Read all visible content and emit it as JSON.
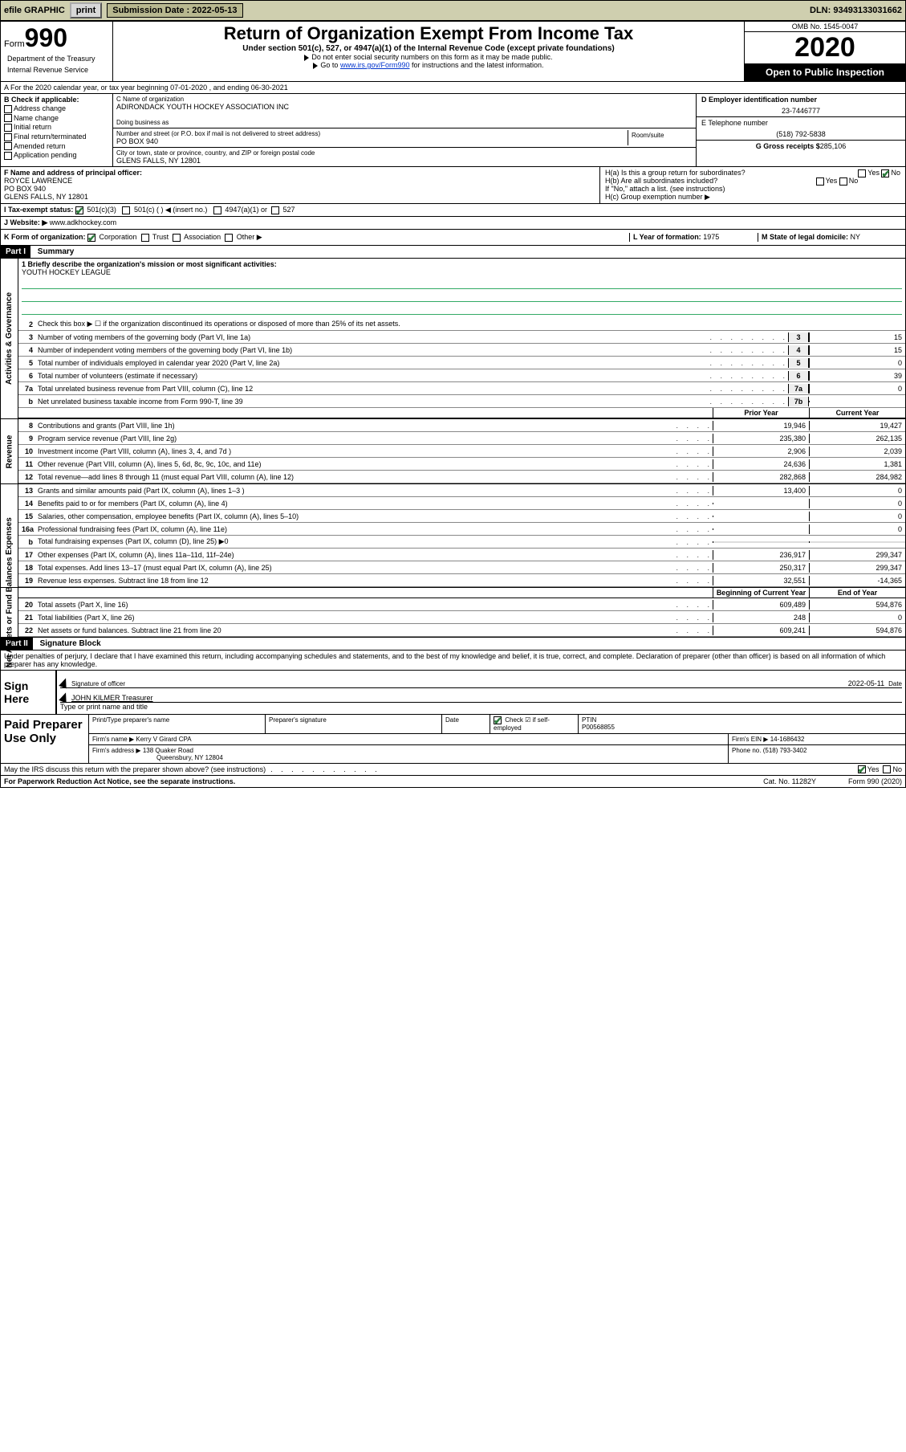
{
  "topbar": {
    "efile_label": "efile GRAPHIC",
    "print_btn": "print",
    "submission_label": "Submission Date : 2022-05-13",
    "dln_label": "DLN: 93493133031662"
  },
  "hdr": {
    "form_label": "Form",
    "form_number": "990",
    "dept": "Department of the Treasury",
    "irs": "Internal Revenue Service",
    "title": "Return of Organization Exempt From Income Tax",
    "subtitle": "Under section 501(c), 527, or 4947(a)(1) of the Internal Revenue Code (except private foundations)",
    "instr1": "Do not enter social security numbers on this form as it may be made public.",
    "instr2_pre": "Go to ",
    "instr2_link": "www.irs.gov/Form990",
    "instr2_post": " for instructions and the latest information.",
    "omb": "OMB No. 1545-0047",
    "year": "2020",
    "public": "Open to Public Inspection"
  },
  "rowA": "A For the 2020 calendar year, or tax year beginning 07-01-2020     , and ending 06-30-2021",
  "colB": {
    "label": "B Check if applicable:",
    "items": [
      "Address change",
      "Name change",
      "Initial return",
      "Final return/terminated",
      "Amended return",
      "Application pending"
    ]
  },
  "colC": {
    "name_hint": "C Name of organization",
    "name": "ADIRONDACK YOUTH HOCKEY ASSOCIATION INC",
    "dba_hint": "Doing business as",
    "addr_hint": "Number and street (or P.O. box if mail is not delivered to street address)",
    "room_hint": "Room/suite",
    "addr": "PO BOX 940",
    "city_hint": "City or town, state or province, country, and ZIP or foreign postal code",
    "city": "GLENS FALLS, NY  12801"
  },
  "colD": {
    "ein_hint": "D Employer identification number",
    "ein": "23-7446777",
    "tel_hint": "E Telephone number",
    "tel": "(518) 792-5838",
    "gross_hint": "G Gross receipts $",
    "gross": "285,106"
  },
  "rowF": {
    "f_hint": "F Name and address of principal officer:",
    "f_name": "ROYCE LAWRENCE",
    "f_addr1": "PO BOX 940",
    "f_addr2": "GLENS FALLS, NY  12801",
    "ha_label": "H(a)  Is this a group return for subordinates?",
    "hb_label": "H(b)  Are all subordinates included?",
    "h_instr": "If \"No,\" attach a list. (see instructions)",
    "hc_label": "H(c)  Group exemption number ▶",
    "yes": "Yes",
    "no": "No"
  },
  "rowI": {
    "label": "I    Tax-exempt status:",
    "opt1": "501(c)(3)",
    "opt2": "501(c) (  ) ◀ (insert no.)",
    "opt3": "4947(a)(1) or",
    "opt4": "527"
  },
  "rowJ": {
    "label": "J   Website: ▶",
    "value": "www.adkhockey.com"
  },
  "rowK": {
    "label": "K Form of organization:",
    "opts": [
      "Corporation",
      "Trust",
      "Association",
      "Other ▶"
    ],
    "l_label": "L Year of formation:",
    "l_val": "1975",
    "m_label": "M State of legal domicile:",
    "m_val": "NY"
  },
  "part1": {
    "header": "Part I",
    "title": "Summary"
  },
  "gov": {
    "vlabel": "Activities & Governance",
    "line1_label": "1  Briefly describe the organization's mission or most significant activities:",
    "line1_val": "YOUTH HOCKEY LEAGUE",
    "line2": "Check this box ▶ ☐  if the organization discontinued its operations or disposed of more than 25% of its net assets.",
    "rows": [
      {
        "n": "3",
        "desc": "Number of voting members of the governing body (Part VI, line 1a)",
        "box": "3",
        "val": "15"
      },
      {
        "n": "4",
        "desc": "Number of independent voting members of the governing body (Part VI, line 1b)",
        "box": "4",
        "val": "15"
      },
      {
        "n": "5",
        "desc": "Total number of individuals employed in calendar year 2020 (Part V, line 2a)",
        "box": "5",
        "val": "0"
      },
      {
        "n": "6",
        "desc": "Total number of volunteers (estimate if necessary)",
        "box": "6",
        "val": "39"
      },
      {
        "n": "7a",
        "desc": "Total unrelated business revenue from Part VIII, column (C), line 12",
        "box": "7a",
        "val": "0"
      },
      {
        "n": "b",
        "desc": "Net unrelated business taxable income from Form 990-T, line 39",
        "box": "7b",
        "val": ""
      }
    ]
  },
  "rev": {
    "vlabel": "Revenue",
    "hprior": "Prior Year",
    "hcurr": "Current Year",
    "rows": [
      {
        "n": "8",
        "desc": "Contributions and grants (Part VIII, line 1h)",
        "prior": "19,946",
        "curr": "19,427"
      },
      {
        "n": "9",
        "desc": "Program service revenue (Part VIII, line 2g)",
        "prior": "235,380",
        "curr": "262,135"
      },
      {
        "n": "10",
        "desc": "Investment income (Part VIII, column (A), lines 3, 4, and 7d )",
        "prior": "2,906",
        "curr": "2,039"
      },
      {
        "n": "11",
        "desc": "Other revenue (Part VIII, column (A), lines 5, 6d, 8c, 9c, 10c, and 11e)",
        "prior": "24,636",
        "curr": "1,381"
      },
      {
        "n": "12",
        "desc": "Total revenue—add lines 8 through 11 (must equal Part VIII, column (A), line 12)",
        "prior": "282,868",
        "curr": "284,982"
      }
    ]
  },
  "exp": {
    "vlabel": "Expenses",
    "rows": [
      {
        "n": "13",
        "desc": "Grants and similar amounts paid (Part IX, column (A), lines 1–3 )",
        "prior": "13,400",
        "curr": "0"
      },
      {
        "n": "14",
        "desc": "Benefits paid to or for members (Part IX, column (A), line 4)",
        "prior": "",
        "curr": "0"
      },
      {
        "n": "15",
        "desc": "Salaries, other compensation, employee benefits (Part IX, column (A), lines 5–10)",
        "prior": "",
        "curr": "0"
      },
      {
        "n": "16a",
        "desc": "Professional fundraising fees (Part IX, column (A), line 11e)",
        "prior": "",
        "curr": "0"
      },
      {
        "n": "b",
        "desc": "Total fundraising expenses (Part IX, column (D), line 25) ▶0",
        "prior": "__shaded__",
        "curr": "__shaded__"
      },
      {
        "n": "17",
        "desc": "Other expenses (Part IX, column (A), lines 11a–11d, 11f–24e)",
        "prior": "236,917",
        "curr": "299,347"
      },
      {
        "n": "18",
        "desc": "Total expenses. Add lines 13–17 (must equal Part IX, column (A), line 25)",
        "prior": "250,317",
        "curr": "299,347"
      },
      {
        "n": "19",
        "desc": "Revenue less expenses. Subtract line 18 from line 12",
        "prior": "32,551",
        "curr": "-14,365"
      }
    ]
  },
  "net": {
    "vlabel": "Net Assets or Fund Balances",
    "hprior": "Beginning of Current Year",
    "hcurr": "End of Year",
    "rows": [
      {
        "n": "20",
        "desc": "Total assets (Part X, line 16)",
        "prior": "609,489",
        "curr": "594,876"
      },
      {
        "n": "21",
        "desc": "Total liabilities (Part X, line 26)",
        "prior": "248",
        "curr": "0"
      },
      {
        "n": "22",
        "desc": "Net assets or fund balances. Subtract line 21 from line 20",
        "prior": "609,241",
        "curr": "594,876"
      }
    ]
  },
  "part2": {
    "header": "Part II",
    "title": "Signature Block",
    "penalties": "Under penalties of perjury, I declare that I have examined this return, including accompanying schedules and statements, and to the best of my knowledge and belief, it is true, correct, and complete. Declaration of preparer (other than officer) is based on all information of which preparer has any knowledge."
  },
  "sign": {
    "label": "Sign Here",
    "sig_of_officer": "Signature of officer",
    "date_label": "Date",
    "date": "2022-05-11",
    "name_title": "JOHN KILMER  Treasurer",
    "type_print": "Type or print name and title"
  },
  "prep": {
    "label": "Paid Preparer Use Only",
    "h_print": "Print/Type preparer's name",
    "h_sig": "Preparer's signature",
    "h_date": "Date",
    "h_check": "Check ☑ if self-employed",
    "h_ptin": "PTIN",
    "ptin": "P00568855",
    "firm_name_label": "Firm's name    ▶",
    "firm_name": "Kerry V Girard CPA",
    "firm_ein_label": "Firm's EIN ▶",
    "firm_ein": "14-1686432",
    "firm_addr_label": "Firm's address ▶",
    "firm_addr1": "138 Quaker Road",
    "firm_addr2": "Queensbury, NY  12804",
    "phone_label": "Phone no.",
    "phone": "(518) 793-3402"
  },
  "footer": {
    "discuss": "May the IRS discuss this return with the preparer shown above? (see instructions)",
    "yes": "Yes",
    "no": "No",
    "paperwork": "For Paperwork Reduction Act Notice, see the separate instructions.",
    "catno": "Cat. No. 11282Y",
    "formyear": "Form 990 (2020)"
  }
}
